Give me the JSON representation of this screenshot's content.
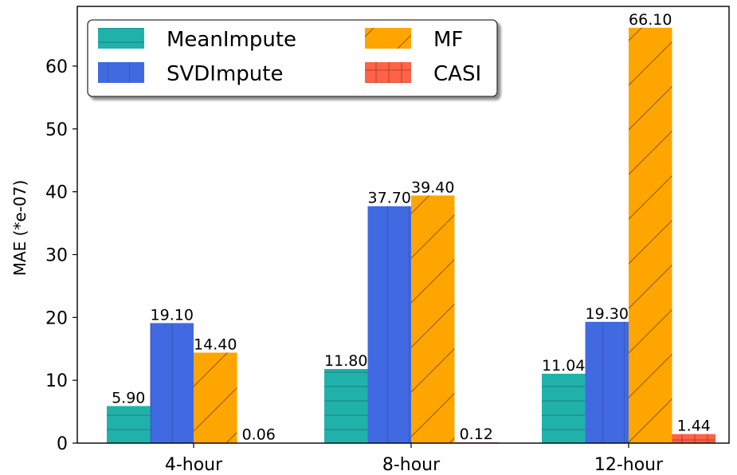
{
  "chart_data": {
    "type": "bar",
    "title": "",
    "xlabel": "",
    "ylabel": "MAE (*e-07)",
    "categories": [
      "4-hour",
      "8-hour",
      "12-hour"
    ],
    "ylim": [
      0,
      69.5
    ],
    "yticks": [
      0,
      10,
      20,
      30,
      40,
      50,
      60
    ],
    "grid": false,
    "legend_position": "top-left",
    "series": [
      {
        "name": "MeanImpute",
        "values": [
          5.9,
          11.8,
          11.04
        ],
        "labels": [
          "5.90",
          "11.80",
          "11.04"
        ],
        "color": "#20b2aa",
        "hatch": "horizontal"
      },
      {
        "name": "SVDImpute",
        "values": [
          19.1,
          37.7,
          19.3
        ],
        "labels": [
          "19.10",
          "37.70",
          "19.30"
        ],
        "color": "#4169e1",
        "hatch": "vertical"
      },
      {
        "name": "MF",
        "values": [
          14.4,
          39.4,
          66.1
        ],
        "labels": [
          "14.40",
          "39.40",
          "66.10"
        ],
        "color": "#ffa500",
        "hatch": "diagonal"
      },
      {
        "name": "CASI",
        "values": [
          0.06,
          0.12,
          1.44
        ],
        "labels": [
          "0.06",
          "0.12",
          "1.44"
        ],
        "color": "#ff6347",
        "hatch": "grid"
      }
    ]
  }
}
